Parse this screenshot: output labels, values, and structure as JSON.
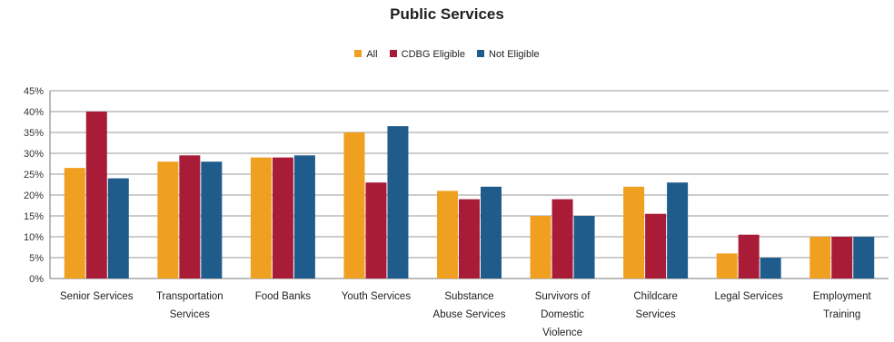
{
  "chart_data": {
    "type": "bar",
    "title": "Public Services",
    "xlabel": "",
    "ylabel": "",
    "ylim": [
      0,
      45
    ],
    "yticks": [
      "0%",
      "5%",
      "10%",
      "15%",
      "20%",
      "25%",
      "30%",
      "35%",
      "40%",
      "45%"
    ],
    "grid": true,
    "legend_position": "top-center",
    "categories": [
      "Senior Services",
      "Transportation Services",
      "Food Banks",
      "Youth Services",
      "Substance Abuse Services",
      "Survivors of Domestic Violence",
      "Childcare Services",
      "Legal Services",
      "Employment Training"
    ],
    "category_lines": [
      [
        "Senior Services"
      ],
      [
        "Transportation",
        "Services"
      ],
      [
        "Food Banks"
      ],
      [
        "Youth Services"
      ],
      [
        "Substance",
        "Abuse Services"
      ],
      [
        "Survivors of",
        "Domestic",
        "Violence"
      ],
      [
        "Childcare",
        "Services"
      ],
      [
        "Legal Services"
      ],
      [
        "Employment",
        "Training"
      ]
    ],
    "series": [
      {
        "name": "All",
        "color": "#f0a020",
        "values": [
          26.5,
          28,
          29,
          35,
          21,
          15,
          22,
          6,
          10
        ]
      },
      {
        "name": "CDBG Eligible",
        "color": "#a81c38",
        "values": [
          40,
          29.5,
          29,
          23,
          19,
          19,
          15.5,
          10.5,
          10
        ]
      },
      {
        "name": "Not Eligible",
        "color": "#1f5c8c",
        "values": [
          24,
          28,
          29.5,
          36.5,
          22,
          15,
          23,
          5,
          10
        ]
      }
    ]
  }
}
